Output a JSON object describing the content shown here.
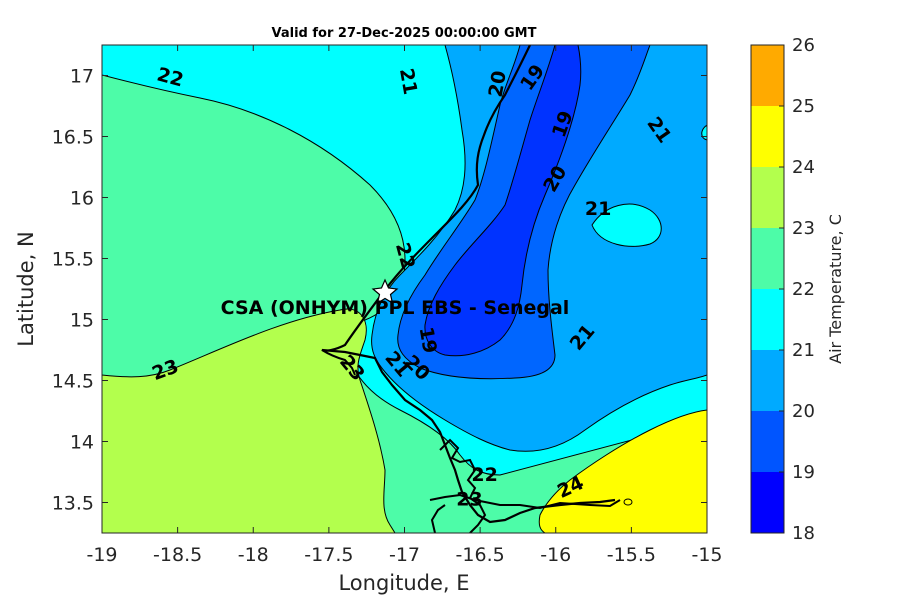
{
  "title": "Valid for 27-Dec-2025 00:00:00 GMT",
  "station": {
    "label": "CSA (ONHYM) PPL EBS  - Senegal"
  },
  "axes": {
    "xlabel": "Longitude, E",
    "ylabel": "Latitude, N",
    "xlim": [
      -19,
      -15
    ],
    "ylim": [
      13.25,
      17.25
    ],
    "xticks": [
      "-19",
      "-18.5",
      "-18",
      "-17.5",
      "-17",
      "-16.5",
      "-16",
      "-15.5",
      "-15"
    ],
    "yticks": [
      "13.5",
      "14",
      "14.5",
      "15",
      "15.5",
      "16",
      "16.5",
      "17"
    ]
  },
  "colorbar": {
    "label": "Air Temperature, C",
    "ticks": [
      "18",
      "19",
      "20",
      "21",
      "22",
      "23",
      "24",
      "25",
      "26"
    ],
    "colors": [
      "#0000ff",
      "#0055ff",
      "#00aaff",
      "#00ffff",
      "#4dfca8",
      "#b3ff4d",
      "#ffff00",
      "#ffaa00",
      "#ff5500"
    ]
  },
  "chart_data": {
    "type": "heatmap",
    "title": "Valid for 27-Dec-2025 00:00:00 GMT",
    "variable": "Air Temperature, C",
    "levels": [
      18,
      19,
      20,
      21,
      22,
      23,
      24,
      25,
      26
    ],
    "contour_labels": [
      {
        "text": "22",
        "lon": -18.55,
        "lat": 16.98,
        "rot": 15
      },
      {
        "text": "21",
        "lon": -16.98,
        "lat": 16.95,
        "rot": 80
      },
      {
        "text": "20",
        "lon": -16.38,
        "lat": 16.93,
        "rot": -80
      },
      {
        "text": "19",
        "lon": -16.15,
        "lat": 16.98,
        "rot": -55
      },
      {
        "text": "19",
        "lon": -15.95,
        "lat": 16.6,
        "rot": -70
      },
      {
        "text": "21",
        "lon": -15.32,
        "lat": 16.55,
        "rot": 55
      },
      {
        "text": "20",
        "lon": -16.0,
        "lat": 16.15,
        "rot": -60
      },
      {
        "text": "21",
        "lon": -15.72,
        "lat": 15.9,
        "rot": 0
      },
      {
        "text": "22",
        "lon": -17.0,
        "lat": 15.52,
        "rot": 75
      },
      {
        "text": "19",
        "lon": -16.85,
        "lat": 14.83,
        "rot": 80
      },
      {
        "text": "20",
        "lon": -16.92,
        "lat": 14.6,
        "rot": 45
      },
      {
        "text": "21",
        "lon": -17.05,
        "lat": 14.63,
        "rot": 50
      },
      {
        "text": "23",
        "lon": -17.35,
        "lat": 14.6,
        "rot": 50
      },
      {
        "text": "23",
        "lon": -18.58,
        "lat": 14.58,
        "rot": -20
      },
      {
        "text": "21",
        "lon": -15.82,
        "lat": 14.85,
        "rot": -50
      },
      {
        "text": "22",
        "lon": -16.47,
        "lat": 13.72,
        "rot": 0
      },
      {
        "text": "23",
        "lon": -16.57,
        "lat": 13.52,
        "rot": 0
      },
      {
        "text": "24",
        "lon": -15.9,
        "lat": 13.62,
        "rot": -25
      }
    ],
    "station": {
      "name": "CSA (ONHYM) PPL EBS  - Senegal",
      "lon": -17.15,
      "lat": 15.23
    }
  }
}
